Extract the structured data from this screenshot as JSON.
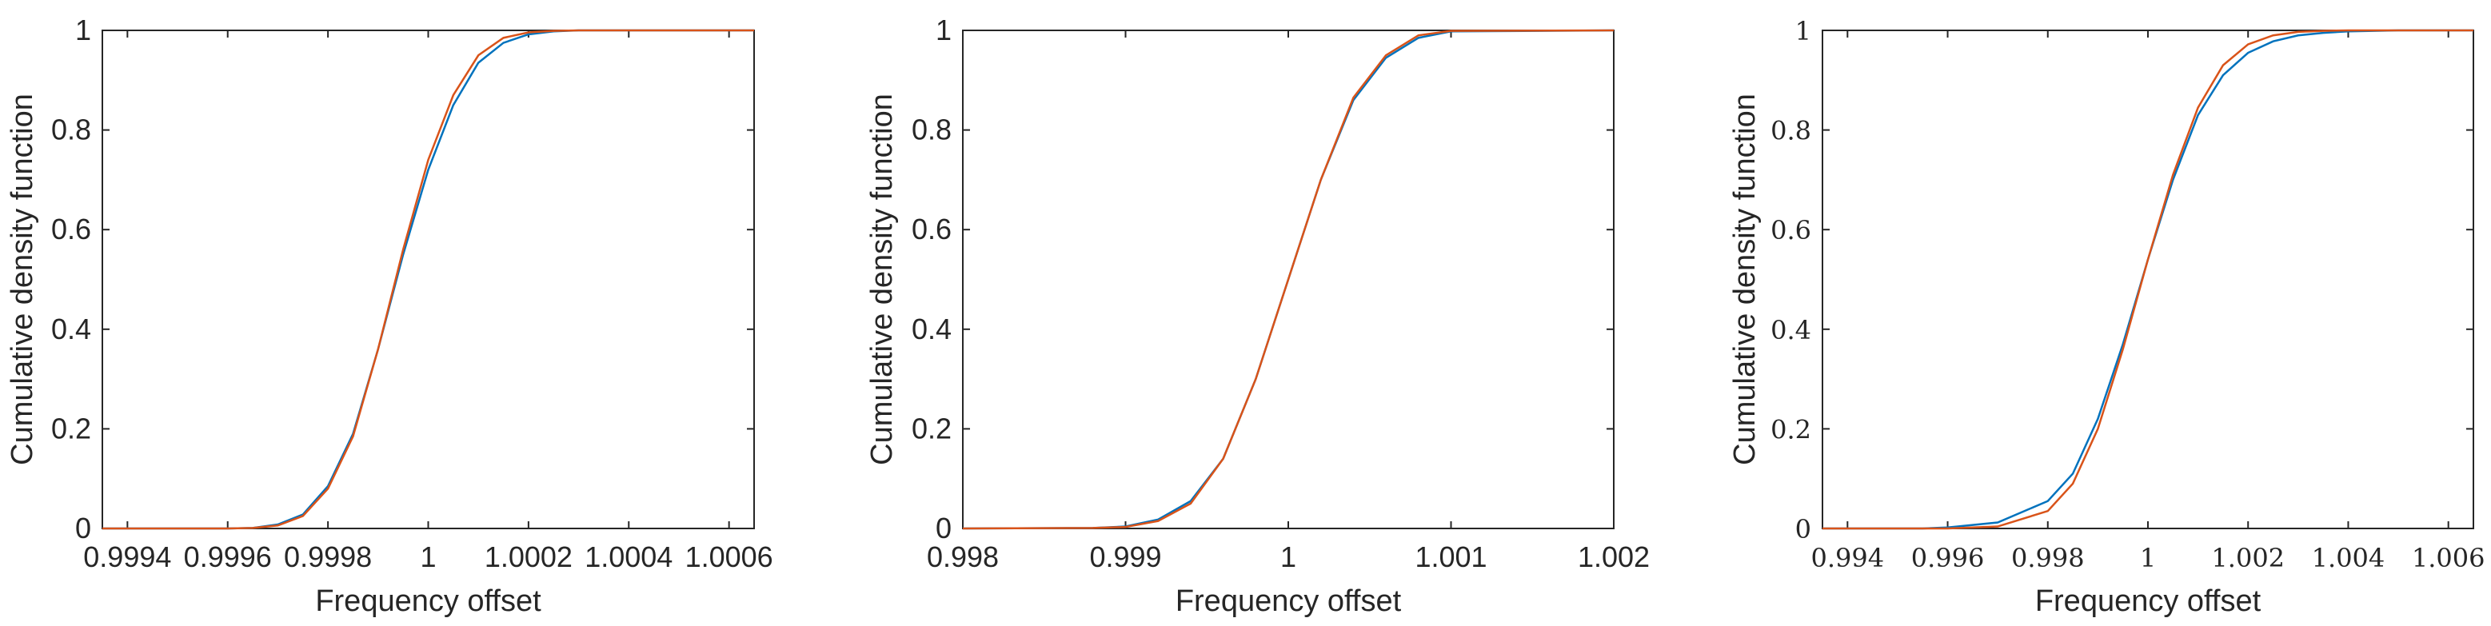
{
  "chart_data": [
    {
      "type": "line",
      "title": "",
      "xlabel": "Frequency offset",
      "ylabel": "Cumulative density function",
      "xlim": [
        0.99935,
        1.00065
      ],
      "ylim": [
        0,
        1
      ],
      "xticks": [
        0.9994,
        0.9996,
        0.9998,
        1,
        1.0002,
        1.0004,
        1.0006
      ],
      "xtick_labels": [
        "0.9994",
        "0.9996",
        "0.9998",
        "1",
        "1.0002",
        "1.0004",
        "1.0006"
      ],
      "yticks": [
        0,
        0.2,
        0.4,
        0.6,
        0.8,
        1
      ],
      "ytick_labels": [
        "0",
        "0.2",
        "0.4",
        "0.6",
        "0.8",
        "1"
      ],
      "grid": false,
      "series": [
        {
          "color": "#0072BD",
          "x": [
            0.99935,
            0.9996,
            0.99965,
            0.9997,
            0.99975,
            0.9998,
            0.99985,
            0.9999,
            0.99995,
            1,
            1.00005,
            1.0001,
            1.00015,
            1.0002,
            1.00025,
            1.0003,
            1.0004,
            1.00065
          ],
          "y": [
            0,
            0,
            0.001,
            0.008,
            0.028,
            0.085,
            0.19,
            0.36,
            0.55,
            0.72,
            0.85,
            0.935,
            0.975,
            0.992,
            0.998,
            1,
            1,
            1
          ]
        },
        {
          "color": "#D95319",
          "x": [
            0.99935,
            0.9996,
            0.99965,
            0.9997,
            0.99975,
            0.9998,
            0.99985,
            0.9999,
            0.99995,
            1,
            1.00005,
            1.0001,
            1.00015,
            1.0002,
            1.00025,
            1.0003,
            1.0004,
            1.00065
          ],
          "y": [
            0,
            0,
            0.001,
            0.006,
            0.025,
            0.08,
            0.185,
            0.36,
            0.56,
            0.74,
            0.87,
            0.95,
            0.985,
            0.996,
            0.999,
            1,
            1,
            1
          ]
        }
      ]
    },
    {
      "type": "line",
      "title": "",
      "xlabel": "Frequency offset",
      "ylabel": "Cumulative density function",
      "xlim": [
        0.998,
        1.002
      ],
      "ylim": [
        0,
        1
      ],
      "xticks": [
        0.998,
        0.999,
        1,
        1.001,
        1.002
      ],
      "xtick_labels": [
        "0.998",
        "0.999",
        "1",
        "1.001",
        "1.002"
      ],
      "yticks": [
        0,
        0.2,
        0.4,
        0.6,
        0.8,
        1
      ],
      "ytick_labels": [
        "0",
        "0.2",
        "0.4",
        "0.6",
        "0.8",
        "1"
      ],
      "grid": false,
      "series": [
        {
          "color": "#0072BD",
          "x": [
            0.998,
            0.9988,
            0.999,
            0.9992,
            0.9994,
            0.9996,
            0.9998,
            1,
            1.0002,
            1.0004,
            1.0006,
            1.0008,
            1.001,
            1.002
          ],
          "y": [
            0,
            0.001,
            0.004,
            0.018,
            0.055,
            0.14,
            0.3,
            0.5,
            0.7,
            0.86,
            0.945,
            0.985,
            0.998,
            1
          ]
        },
        {
          "color": "#D95319",
          "x": [
            0.998,
            0.9988,
            0.999,
            0.9992,
            0.9994,
            0.9996,
            0.9998,
            1,
            1.0002,
            1.0004,
            1.0006,
            1.0008,
            1.001,
            1.002
          ],
          "y": [
            0,
            0.001,
            0.003,
            0.015,
            0.05,
            0.14,
            0.3,
            0.5,
            0.7,
            0.865,
            0.95,
            0.99,
            0.999,
            1
          ]
        }
      ]
    },
    {
      "type": "line",
      "title": "",
      "xlabel": "Frequency offset",
      "ylabel": "Cumulative density function",
      "xlim": [
        0.9935,
        1.0065
      ],
      "ylim": [
        0,
        1
      ],
      "xticks": [
        0.994,
        0.996,
        0.998,
        1,
        1.002,
        1.004,
        1.006
      ],
      "xtick_labels": [
        "0.994",
        "0.996",
        "0.998",
        "1",
        "1.002",
        "1.004",
        "1.006"
      ],
      "yticks": [
        0,
        0.2,
        0.4,
        0.6,
        0.8,
        1
      ],
      "ytick_labels": [
        "0",
        "0.2",
        "0.4",
        "0.6",
        "0.8",
        "1"
      ],
      "grid": false,
      "series": [
        {
          "color": "#0072BD",
          "x": [
            0.9935,
            0.9955,
            0.996,
            0.997,
            0.998,
            0.9985,
            0.999,
            0.9995,
            1,
            1.0005,
            1.001,
            1.0015,
            1.002,
            1.0025,
            1.003,
            1.0035,
            1.004,
            1.005,
            1.0065
          ],
          "y": [
            0,
            0,
            0.002,
            0.012,
            0.055,
            0.11,
            0.22,
            0.37,
            0.54,
            0.7,
            0.83,
            0.91,
            0.955,
            0.978,
            0.99,
            0.995,
            0.998,
            1,
            1
          ]
        },
        {
          "color": "#D95319",
          "x": [
            0.9935,
            0.9955,
            0.996,
            0.997,
            0.998,
            0.9985,
            0.999,
            0.9995,
            1,
            1.0005,
            1.001,
            1.0015,
            1.002,
            1.0025,
            1.003,
            1.0035,
            1.004,
            1.005,
            1.0065
          ],
          "y": [
            0,
            0,
            0,
            0.004,
            0.035,
            0.09,
            0.2,
            0.36,
            0.54,
            0.71,
            0.845,
            0.93,
            0.972,
            0.99,
            0.997,
            0.999,
            1,
            1,
            1
          ]
        }
      ]
    }
  ]
}
